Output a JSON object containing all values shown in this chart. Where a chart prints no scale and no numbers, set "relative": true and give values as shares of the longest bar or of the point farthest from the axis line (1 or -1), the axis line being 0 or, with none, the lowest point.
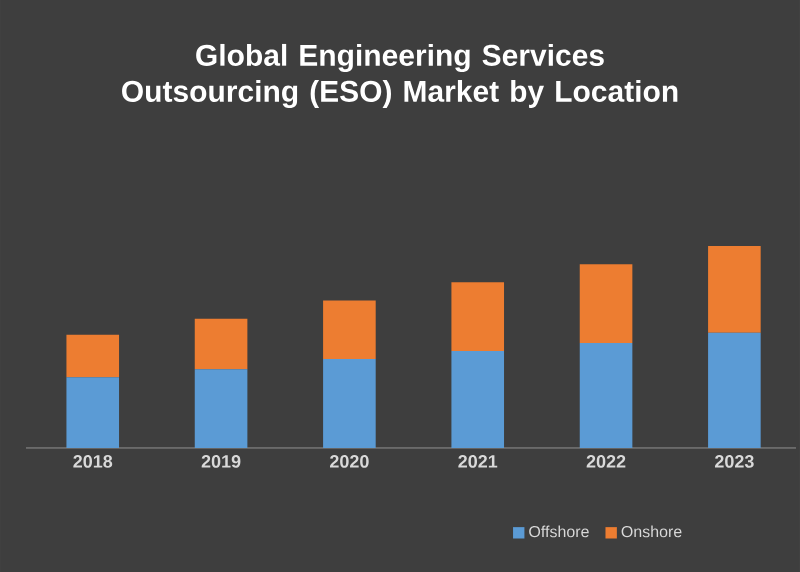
{
  "chart_data": {
    "type": "bar",
    "title": "Global Engineering Services Outsourcing (ESO) Market by Location",
    "categories": [
      "2018",
      "2019",
      "2020",
      "2021",
      "2022",
      "2023"
    ],
    "stacked": true,
    "relative": true,
    "legend": "bottom",
    "series": [
      {
        "name": "Offshore",
        "color": "#5b9bd5",
        "values": [
          0.35,
          0.39,
          0.44,
          0.48,
          0.52,
          0.57
        ]
      },
      {
        "name": "Onshore",
        "color": "#ed7d31",
        "values": [
          0.21,
          0.25,
          0.29,
          0.34,
          0.39,
          0.43
        ]
      }
    ]
  }
}
